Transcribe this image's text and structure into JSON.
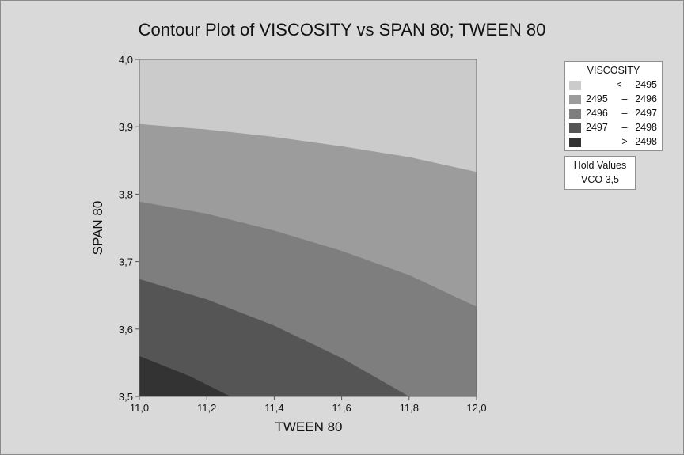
{
  "chart_data": {
    "type": "contour",
    "title": "Contour Plot of VISCOSITY vs SPAN 80; TWEEN 80",
    "xlabel": "TWEEN 80",
    "ylabel": "SPAN 80",
    "xlim": [
      11.0,
      12.0
    ],
    "ylim": [
      3.5,
      4.0
    ],
    "x_ticks": [
      "11,0",
      "11,2",
      "11,4",
      "11,6",
      "11,8",
      "12,0"
    ],
    "y_ticks": [
      "3,5",
      "3,6",
      "3,7",
      "3,8",
      "3,9",
      "4,0"
    ],
    "legend": {
      "title": "VISCOSITY",
      "placement": "right",
      "levels": [
        {
          "op": "<",
          "lo": "",
          "hi": "2495",
          "color": "#cbcbcb"
        },
        {
          "op": "–",
          "lo": "2495",
          "hi": "2496",
          "color": "#9c9c9c"
        },
        {
          "op": "–",
          "lo": "2496",
          "hi": "2497",
          "color": "#7e7e7e"
        },
        {
          "op": "–",
          "lo": "2497",
          "hi": "2498",
          "color": "#555555"
        },
        {
          "op": ">",
          "lo": "",
          "hi": "2498",
          "color": "#333333"
        }
      ]
    },
    "contour_lines": [
      {
        "level": 2495,
        "points": [
          [
            11.0,
            3.904
          ],
          [
            11.2,
            3.896
          ],
          [
            11.4,
            3.885
          ],
          [
            11.6,
            3.871
          ],
          [
            11.8,
            3.855
          ],
          [
            12.0,
            3.833
          ]
        ]
      },
      {
        "level": 2496,
        "points": [
          [
            11.0,
            3.789
          ],
          [
            11.2,
            3.771
          ],
          [
            11.4,
            3.746
          ],
          [
            11.6,
            3.716
          ],
          [
            11.8,
            3.68
          ],
          [
            12.0,
            3.633
          ]
        ]
      },
      {
        "level": 2497,
        "points": [
          [
            11.0,
            3.674
          ],
          [
            11.2,
            3.644
          ],
          [
            11.4,
            3.605
          ],
          [
            11.6,
            3.557
          ],
          [
            11.8,
            3.5
          ]
        ]
      },
      {
        "level": 2498,
        "points": [
          [
            11.0,
            3.56
          ],
          [
            11.15,
            3.53
          ],
          [
            11.27,
            3.5
          ]
        ]
      }
    ],
    "hold_values": {
      "title": "Hold Values",
      "value": "VCO  3,5"
    }
  }
}
